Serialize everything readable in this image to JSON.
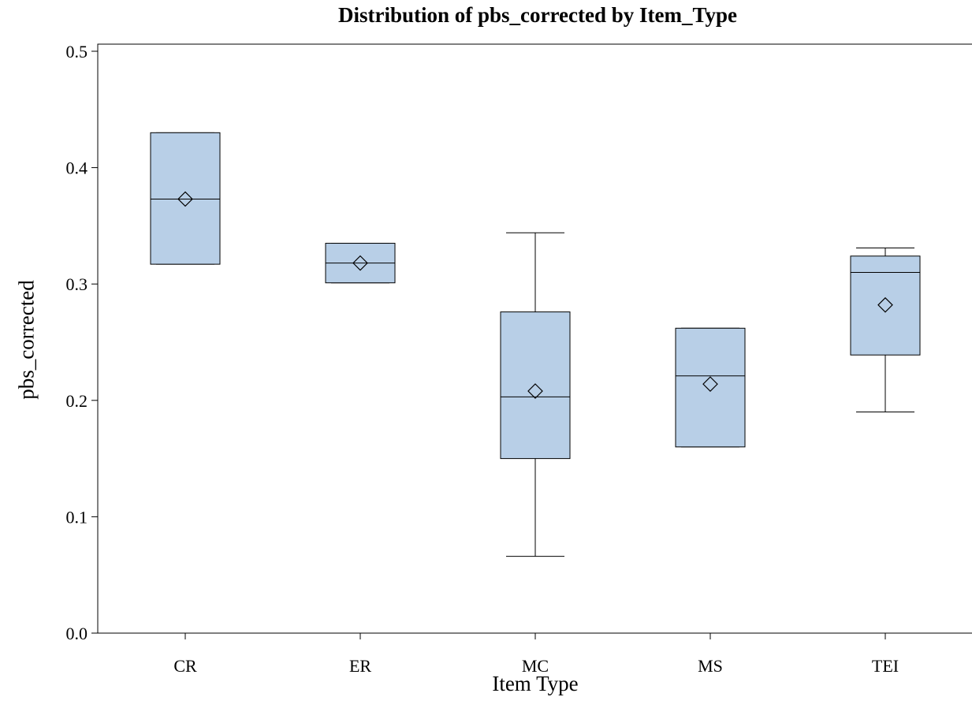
{
  "chart_data": {
    "type": "box",
    "title": "Distribution of pbs_corrected by Item_Type",
    "xlabel": "Item Type",
    "ylabel": "pbs_corrected",
    "ylim": [
      0.0,
      0.5
    ],
    "yticks": [
      "0.0",
      "0.1",
      "0.2",
      "0.3",
      "0.4",
      "0.5"
    ],
    "categories": [
      "CR",
      "ER",
      "MC",
      "MS",
      "TEI"
    ],
    "grid": false,
    "box_fill": "#b8cfe7",
    "line_color": "#000000",
    "boxes": [
      {
        "category": "CR",
        "min": 0.317,
        "q1": 0.317,
        "median": 0.373,
        "q3": 0.43,
        "max": 0.43,
        "mean": 0.373
      },
      {
        "category": "ER",
        "min": 0.301,
        "q1": 0.301,
        "median": 0.318,
        "q3": 0.335,
        "max": 0.335,
        "mean": 0.318
      },
      {
        "category": "MC",
        "min": 0.066,
        "q1": 0.15,
        "median": 0.203,
        "q3": 0.276,
        "max": 0.344,
        "mean": 0.208
      },
      {
        "category": "MS",
        "min": 0.16,
        "q1": 0.16,
        "median": 0.221,
        "q3": 0.262,
        "max": 0.262,
        "mean": 0.214
      },
      {
        "category": "TEI",
        "min": 0.19,
        "q1": 0.239,
        "median": 0.31,
        "q3": 0.324,
        "max": 0.331,
        "mean": 0.282
      }
    ]
  }
}
